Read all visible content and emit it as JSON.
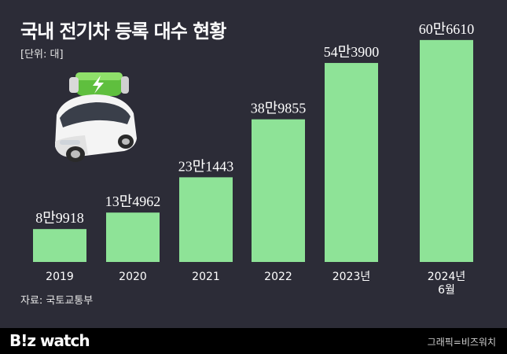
{
  "header": {
    "title": "국내 전기차 등록 대수 현황",
    "unit": "[단위: 대]"
  },
  "source": "자료: 국토교통부",
  "footer": {
    "logo": "B!z watch",
    "credit": "그래픽=비즈워치"
  },
  "colors": {
    "background": "#2c2c37",
    "bar": "#8ee397",
    "text": "#ffffff",
    "footer_bg": "#000000"
  },
  "chart_data": {
    "type": "bar",
    "categories": [
      "2019",
      "2020",
      "2021",
      "2022",
      "2023년",
      "2024년\n6월"
    ],
    "values": [
      89918,
      134962,
      231443,
      389855,
      543900,
      606610
    ],
    "data_labels": [
      "8만9918",
      "13만4962",
      "23만1443",
      "38만9855",
      "54만3900",
      "60만6610"
    ],
    "title": "국내 전기차 등록 대수 현황",
    "xlabel": "",
    "ylabel": "",
    "ylim": [
      0,
      630000
    ],
    "grid": false,
    "legend": "none"
  }
}
